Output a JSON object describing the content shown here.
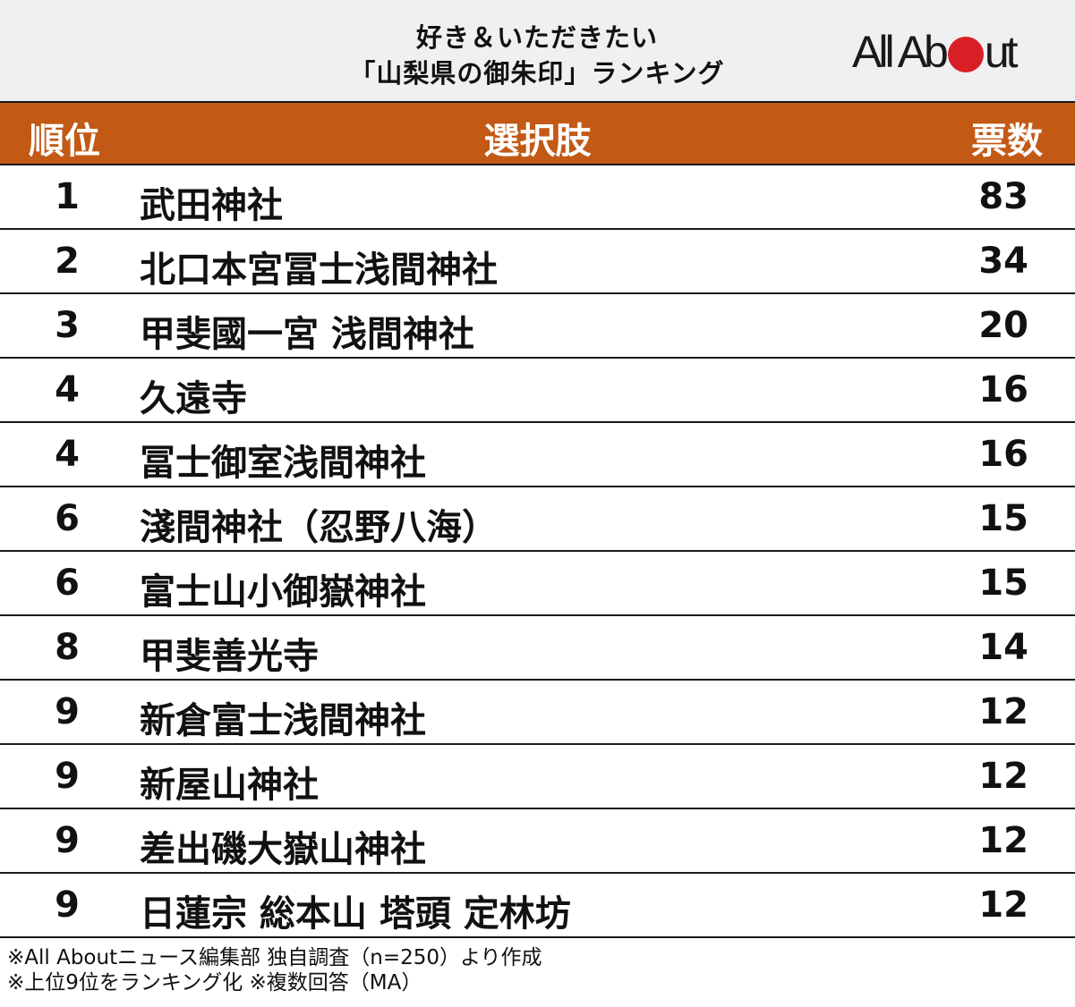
{
  "title": {
    "line1": "好き＆いただきたい",
    "line2": "「山梨県の御朱印」ランキング"
  },
  "logo": {
    "text_before": "All Ab",
    "text_after": "ut",
    "dot_color": "#d91f26"
  },
  "colors": {
    "header_bg": "#c25915",
    "title_band_bg": "#f0f0f0"
  },
  "table": {
    "headers": {
      "rank": "順位",
      "choice": "選択肢",
      "votes": "票数"
    },
    "rows": [
      {
        "rank": "1",
        "name": "武田神社",
        "votes": "83"
      },
      {
        "rank": "2",
        "name": "北口本宮冨士浅間神社",
        "votes": "34"
      },
      {
        "rank": "3",
        "name": "甲斐國一宮 浅間神社",
        "votes": "20"
      },
      {
        "rank": "4",
        "name": "久遠寺",
        "votes": "16"
      },
      {
        "rank": "4",
        "name": "冨士御室浅間神社",
        "votes": "16"
      },
      {
        "rank": "6",
        "name": "淺間神社（忍野八海）",
        "votes": "15"
      },
      {
        "rank": "6",
        "name": "富士山小御嶽神社",
        "votes": "15"
      },
      {
        "rank": "8",
        "name": "甲斐善光寺",
        "votes": "14"
      },
      {
        "rank": "9",
        "name": "新倉富士浅間神社",
        "votes": "12"
      },
      {
        "rank": "9",
        "name": "新屋山神社",
        "votes": "12"
      },
      {
        "rank": "9",
        "name": "差出磯大嶽山神社",
        "votes": "12"
      },
      {
        "rank": "9",
        "name": "日蓮宗 総本山 塔頭 定林坊",
        "votes": "12"
      }
    ]
  },
  "notes": {
    "line1": "※All Aboutニュース編集部 独自調査（n=250）より作成",
    "line2": "※上位9位をランキング化 ※複数回答（MA）"
  }
}
